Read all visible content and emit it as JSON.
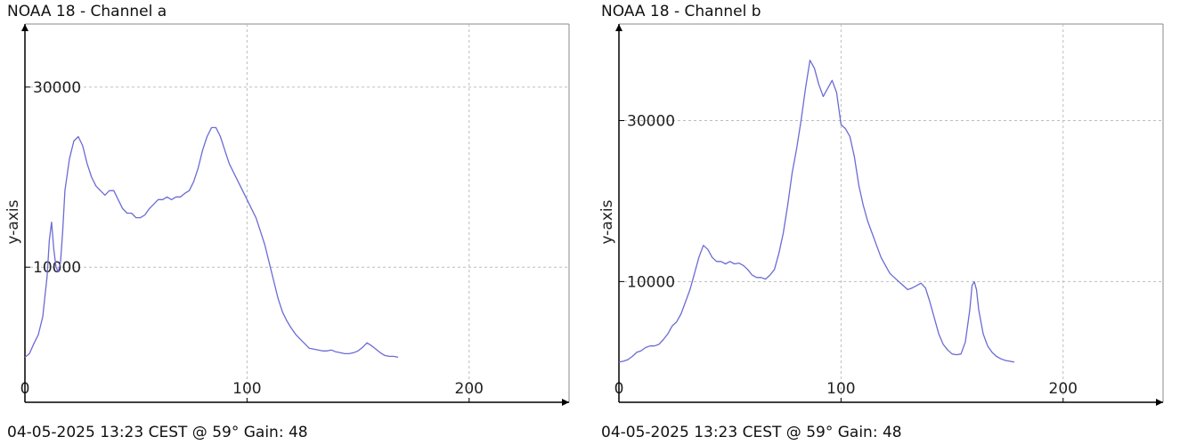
{
  "chart_data": [
    {
      "type": "line",
      "title": "NOAA 18 - Channel a",
      "ylabel": "y-axis",
      "footer": "04-05-2025 13:23 CEST @ 59° Gain: 48",
      "xlim": [
        0,
        245
      ],
      "ylim": [
        -5000,
        37000
      ],
      "x_ticks": [
        0,
        100,
        200
      ],
      "y_ticks": [
        10000,
        30000
      ],
      "grid": true,
      "series_color": "#6b6bd6",
      "series": [
        {
          "points": [
            [
              0,
              0
            ],
            [
              2,
              400
            ],
            [
              4,
              1500
            ],
            [
              6,
              2500
            ],
            [
              8,
              4500
            ],
            [
              10,
              9000
            ],
            [
              11,
              13000
            ],
            [
              12,
              15000
            ],
            [
              13,
              12000
            ],
            [
              14,
              10000
            ],
            [
              15,
              9500
            ],
            [
              16,
              10500
            ],
            [
              17,
              14000
            ],
            [
              18,
              18500
            ],
            [
              20,
              22000
            ],
            [
              22,
              24000
            ],
            [
              24,
              24500
            ],
            [
              26,
              23500
            ],
            [
              28,
              21500
            ],
            [
              30,
              20000
            ],
            [
              32,
              19000
            ],
            [
              34,
              18500
            ],
            [
              36,
              18000
            ],
            [
              38,
              18500
            ],
            [
              40,
              18500
            ],
            [
              42,
              17500
            ],
            [
              44,
              16500
            ],
            [
              46,
              16000
            ],
            [
              48,
              16000
            ],
            [
              50,
              15500
            ],
            [
              52,
              15500
            ],
            [
              54,
              15800
            ],
            [
              56,
              16500
            ],
            [
              58,
              17000
            ],
            [
              60,
              17500
            ],
            [
              62,
              17500
            ],
            [
              64,
              17800
            ],
            [
              66,
              17500
            ],
            [
              68,
              17800
            ],
            [
              70,
              17800
            ],
            [
              72,
              18200
            ],
            [
              74,
              18500
            ],
            [
              76,
              19500
            ],
            [
              78,
              21000
            ],
            [
              80,
              23000
            ],
            [
              82,
              24500
            ],
            [
              84,
              25500
            ],
            [
              86,
              25500
            ],
            [
              88,
              24500
            ],
            [
              90,
              23000
            ],
            [
              92,
              21500
            ],
            [
              94,
              20500
            ],
            [
              96,
              19500
            ],
            [
              98,
              18500
            ],
            [
              100,
              17500
            ],
            [
              102,
              16500
            ],
            [
              104,
              15500
            ],
            [
              106,
              14000
            ],
            [
              108,
              12500
            ],
            [
              110,
              10500
            ],
            [
              112,
              8500
            ],
            [
              114,
              6500
            ],
            [
              116,
              5000
            ],
            [
              118,
              4000
            ],
            [
              120,
              3200
            ],
            [
              122,
              2500
            ],
            [
              124,
              2000
            ],
            [
              126,
              1500
            ],
            [
              128,
              1000
            ],
            [
              130,
              900
            ],
            [
              132,
              800
            ],
            [
              134,
              700
            ],
            [
              136,
              700
            ],
            [
              138,
              800
            ],
            [
              140,
              600
            ],
            [
              142,
              500
            ],
            [
              144,
              400
            ],
            [
              146,
              400
            ],
            [
              148,
              500
            ],
            [
              150,
              700
            ],
            [
              152,
              1100
            ],
            [
              154,
              1600
            ],
            [
              156,
              1300
            ],
            [
              158,
              900
            ],
            [
              160,
              500
            ],
            [
              162,
              200
            ],
            [
              164,
              100
            ],
            [
              166,
              100
            ],
            [
              168,
              0
            ]
          ]
        }
      ]
    },
    {
      "type": "line",
      "title": "NOAA 18 - Channel b",
      "ylabel": "y-axis",
      "footer": "04-05-2025 13:23 CEST @ 59° Gain: 48",
      "xlim": [
        0,
        245
      ],
      "ylim": [
        -5000,
        42000
      ],
      "x_ticks": [
        0,
        100,
        200
      ],
      "y_ticks": [
        10000,
        30000
      ],
      "grid": true,
      "series_color": "#6b6bd6",
      "series": [
        {
          "points": [
            [
              0,
              0
            ],
            [
              2,
              100
            ],
            [
              4,
              300
            ],
            [
              6,
              700
            ],
            [
              8,
              1200
            ],
            [
              10,
              1400
            ],
            [
              12,
              1800
            ],
            [
              14,
              2000
            ],
            [
              16,
              2000
            ],
            [
              18,
              2200
            ],
            [
              20,
              2800
            ],
            [
              22,
              3500
            ],
            [
              24,
              4500
            ],
            [
              26,
              5000
            ],
            [
              28,
              6000
            ],
            [
              30,
              7500
            ],
            [
              32,
              9000
            ],
            [
              34,
              11000
            ],
            [
              36,
              13000
            ],
            [
              38,
              14500
            ],
            [
              40,
              14000
            ],
            [
              42,
              13000
            ],
            [
              44,
              12500
            ],
            [
              46,
              12500
            ],
            [
              48,
              12200
            ],
            [
              50,
              12500
            ],
            [
              52,
              12200
            ],
            [
              54,
              12300
            ],
            [
              56,
              12000
            ],
            [
              58,
              11500
            ],
            [
              60,
              10800
            ],
            [
              62,
              10500
            ],
            [
              64,
              10500
            ],
            [
              66,
              10300
            ],
            [
              68,
              10800
            ],
            [
              70,
              11500
            ],
            [
              72,
              13500
            ],
            [
              74,
              16000
            ],
            [
              76,
              19500
            ],
            [
              78,
              23500
            ],
            [
              80,
              26500
            ],
            [
              82,
              30000
            ],
            [
              84,
              34000
            ],
            [
              86,
              37500
            ],
            [
              88,
              36500
            ],
            [
              90,
              34500
            ],
            [
              92,
              33000
            ],
            [
              94,
              34000
            ],
            [
              96,
              35000
            ],
            [
              98,
              33500
            ],
            [
              100,
              29500
            ],
            [
              102,
              29000
            ],
            [
              104,
              28000
            ],
            [
              106,
              25500
            ],
            [
              108,
              22000
            ],
            [
              110,
              19500
            ],
            [
              112,
              17500
            ],
            [
              114,
              16000
            ],
            [
              116,
              14500
            ],
            [
              118,
              13000
            ],
            [
              120,
              12000
            ],
            [
              122,
              11000
            ],
            [
              124,
              10500
            ],
            [
              126,
              10000
            ],
            [
              128,
              9500
            ],
            [
              130,
              9000
            ],
            [
              132,
              9200
            ],
            [
              134,
              9500
            ],
            [
              136,
              9800
            ],
            [
              138,
              9200
            ],
            [
              140,
              7500
            ],
            [
              142,
              5500
            ],
            [
              144,
              3500
            ],
            [
              146,
              2200
            ],
            [
              148,
              1500
            ],
            [
              150,
              1000
            ],
            [
              152,
              900
            ],
            [
              154,
              1000
            ],
            [
              156,
              2500
            ],
            [
              158,
              6500
            ],
            [
              159,
              9500
            ],
            [
              160,
              10000
            ],
            [
              161,
              9000
            ],
            [
              162,
              6500
            ],
            [
              164,
              3500
            ],
            [
              166,
              2000
            ],
            [
              168,
              1200
            ],
            [
              170,
              700
            ],
            [
              172,
              400
            ],
            [
              174,
              200
            ],
            [
              176,
              100
            ],
            [
              178,
              0
            ]
          ]
        }
      ]
    }
  ]
}
